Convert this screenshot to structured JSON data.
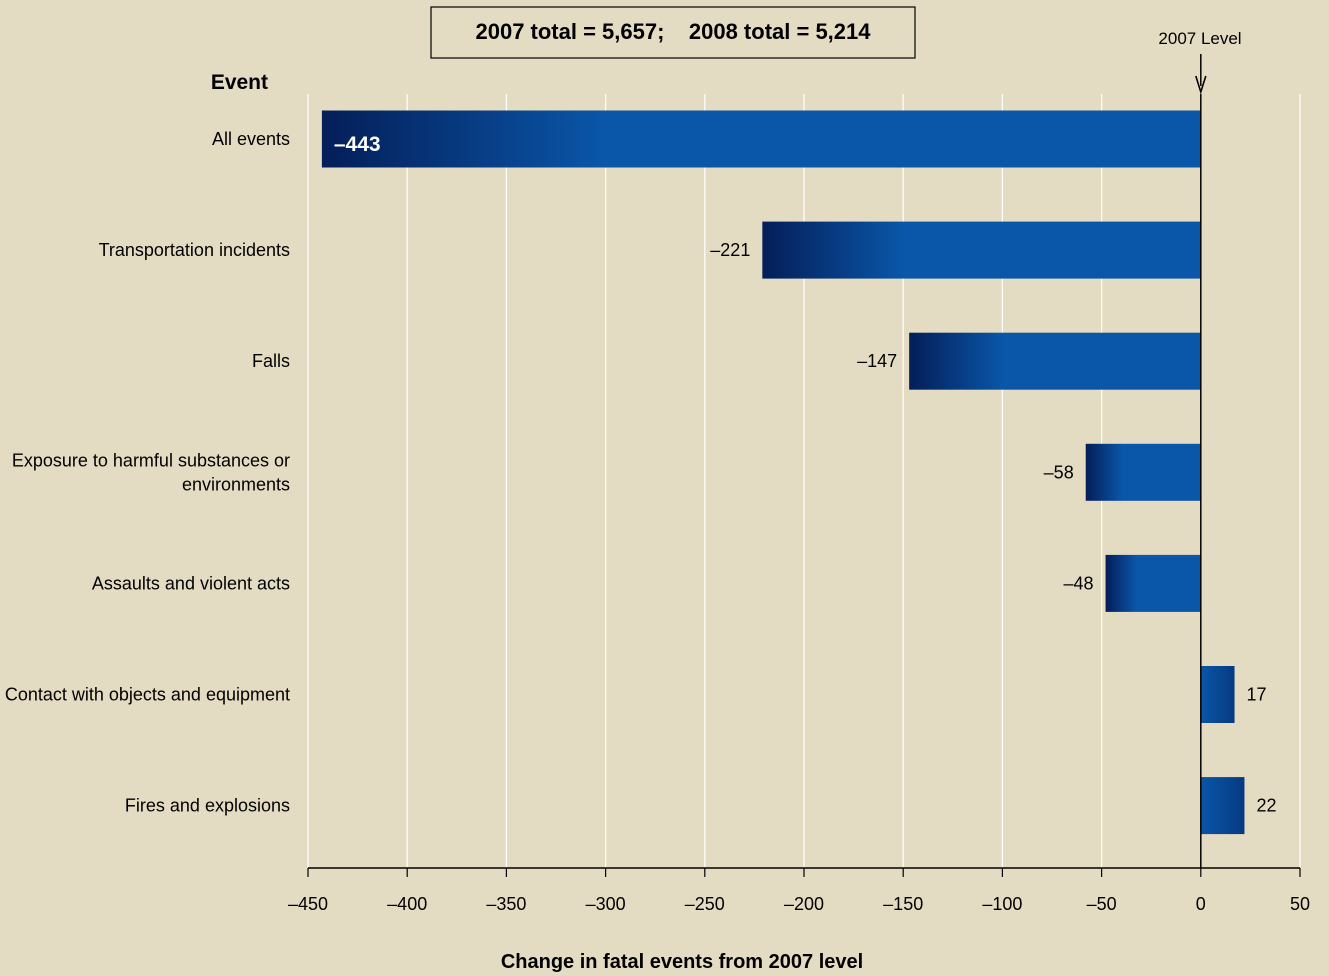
{
  "chart_data": {
    "type": "bar",
    "orientation": "horizontal",
    "summary_box": "2007 total = 5,657;    2008 total = 5,214",
    "reference_label": "2007 Level",
    "y_header": "Event",
    "xlabel": "Change in fatal events from 2007 level",
    "xlim": [
      -450,
      50
    ],
    "xticks": [
      -450,
      -400,
      -350,
      -300,
      -250,
      -200,
      -150,
      -100,
      -50,
      0,
      50
    ],
    "xtick_labels": [
      "–450",
      "–400",
      "–350",
      "–300",
      "–250",
      "–200",
      "–150",
      "–100",
      "–50",
      "0",
      "50"
    ],
    "grid": true,
    "categories": [
      "All events",
      "Transportation incidents",
      "Falls",
      "Exposure to harmful substances or environments",
      "Assaults and violent acts",
      "Contact with objects and equipment",
      "Fires and explosions"
    ],
    "values": [
      -443,
      -221,
      -147,
      -58,
      -48,
      17,
      22
    ],
    "value_labels": [
      "–443",
      "–221",
      "–147",
      "–58",
      "–48",
      "17",
      "22"
    ],
    "colors": {
      "background": "#e4dcc2",
      "bar_light": "#0a56a8",
      "bar_dark": "#041e58",
      "grid": "#ffffff",
      "axis": "#000000"
    }
  }
}
